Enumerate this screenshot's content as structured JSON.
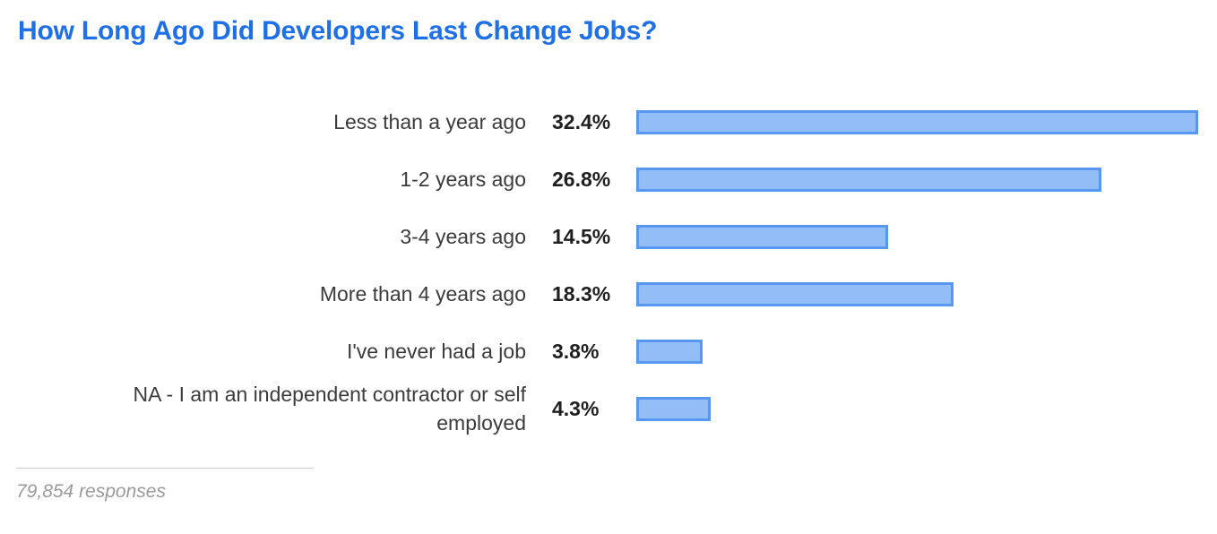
{
  "title": "How Long Ago Did Developers Last Change Jobs?",
  "footer": {
    "responses_label": "79,854 responses"
  },
  "colors": {
    "title": "#1f6fe5",
    "bar_fill": "#93bdf7",
    "bar_border": "#5897f0",
    "category_text": "#3b3b3b",
    "value_text": "#1f1f1f",
    "footer_text": "#9a9a9a",
    "divider": "#cccccc"
  },
  "chart_data": {
    "type": "bar",
    "orientation": "horizontal",
    "title": "How Long Ago Did Developers Last Change Jobs?",
    "categories": [
      "Less than a year ago",
      "1-2 years ago",
      "3-4 years ago",
      "More than 4 years ago",
      "I've never had a job",
      "NA - I am an independent contractor or self employed"
    ],
    "values": [
      32.4,
      26.8,
      14.5,
      18.3,
      3.8,
      4.3
    ],
    "value_labels": [
      "32.4%",
      "26.8%",
      "14.5%",
      "18.3%",
      "3.8%",
      "4.3%"
    ],
    "xlim": [
      0,
      32.4
    ],
    "grid": false,
    "legend": false,
    "annotation": "79,854 responses"
  }
}
